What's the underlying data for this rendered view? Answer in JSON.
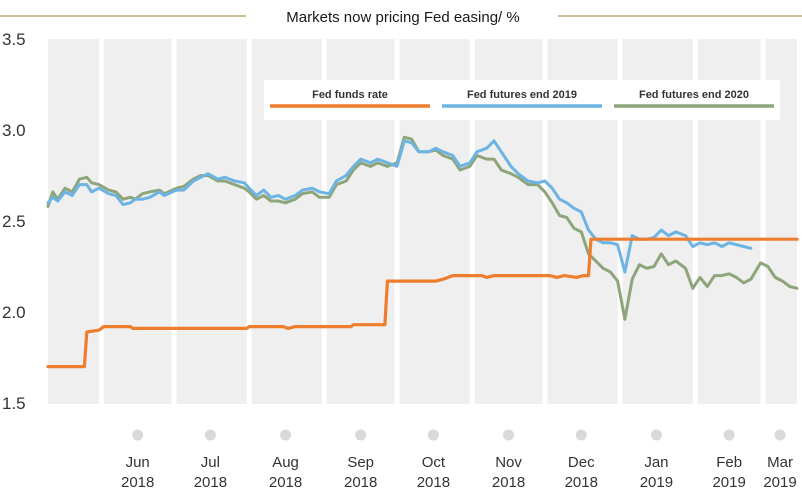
{
  "chart_data": {
    "type": "line",
    "title": "Markets now pricing Fed easing/ %",
    "ylim": [
      1.5,
      3.5
    ],
    "yticks": [
      "3.5",
      "3.0",
      "2.5",
      "2.0",
      "1.5"
    ],
    "xlim": [
      "2018-05-10",
      "2019-03-15"
    ],
    "months": [
      {
        "label": "Jun",
        "year": "2018",
        "start": "2018-06-01",
        "end": "2018-07-01"
      },
      {
        "label": "Jul",
        "year": "2018",
        "start": "2018-07-01",
        "end": "2018-08-01"
      },
      {
        "label": "Aug",
        "year": "2018",
        "start": "2018-08-01",
        "end": "2018-09-01"
      },
      {
        "label": "Sep",
        "year": "2018",
        "start": "2018-09-01",
        "end": "2018-10-01"
      },
      {
        "label": "Oct",
        "year": "2018",
        "start": "2018-10-01",
        "end": "2018-11-01"
      },
      {
        "label": "Nov",
        "year": "2018",
        "start": "2018-11-01",
        "end": "2018-12-01"
      },
      {
        "label": "Dec",
        "year": "2018",
        "start": "2018-12-01",
        "end": "2019-01-01"
      },
      {
        "label": "Jan",
        "year": "2019",
        "start": "2019-01-01",
        "end": "2019-02-01"
      },
      {
        "label": "Feb",
        "year": "2019",
        "start": "2019-02-01",
        "end": "2019-03-01"
      },
      {
        "label": "Mar",
        "year": "2019",
        "start": "2019-03-01",
        "end": "2019-03-15"
      }
    ],
    "legend_position": "top-right",
    "grid": false,
    "series": [
      {
        "name": "Fed funds rate",
        "color": "#ee7d2e",
        "points": [
          [
            "2018-05-10",
            1.7
          ],
          [
            "2018-05-25",
            1.7
          ],
          [
            "2018-05-26",
            1.89
          ],
          [
            "2018-05-31",
            1.9
          ],
          [
            "2018-06-02",
            1.92
          ],
          [
            "2018-06-13",
            1.92
          ],
          [
            "2018-06-14",
            1.91
          ],
          [
            "2018-07-31",
            1.91
          ],
          [
            "2018-08-01",
            1.92
          ],
          [
            "2018-08-15",
            1.92
          ],
          [
            "2018-08-17",
            1.91
          ],
          [
            "2018-08-20",
            1.92
          ],
          [
            "2018-09-12",
            1.92
          ],
          [
            "2018-09-13",
            1.93
          ],
          [
            "2018-09-26",
            1.93
          ],
          [
            "2018-09-27",
            2.17
          ],
          [
            "2018-10-17",
            2.17
          ],
          [
            "2018-10-20",
            2.18
          ],
          [
            "2018-10-24",
            2.2
          ],
          [
            "2018-11-05",
            2.2
          ],
          [
            "2018-11-07",
            2.19
          ],
          [
            "2018-11-10",
            2.2
          ],
          [
            "2018-12-03",
            2.2
          ],
          [
            "2018-12-06",
            2.19
          ],
          [
            "2018-12-09",
            2.2
          ],
          [
            "2018-12-14",
            2.19
          ],
          [
            "2018-12-17",
            2.2
          ],
          [
            "2018-12-19",
            2.2
          ],
          [
            "2018-12-20",
            2.4
          ],
          [
            "2019-03-15",
            2.4
          ]
        ]
      },
      {
        "name": "Fed futures end 2019",
        "color": "#6cb4e4",
        "points": [
          [
            "2018-05-10",
            2.6
          ],
          [
            "2018-05-12",
            2.63
          ],
          [
            "2018-05-14",
            2.61
          ],
          [
            "2018-05-17",
            2.66
          ],
          [
            "2018-05-20",
            2.64
          ],
          [
            "2018-05-23",
            2.7
          ],
          [
            "2018-05-26",
            2.7
          ],
          [
            "2018-05-28",
            2.66
          ],
          [
            "2018-05-31",
            2.68
          ],
          [
            "2018-06-04",
            2.65
          ],
          [
            "2018-06-07",
            2.64
          ],
          [
            "2018-06-10",
            2.59
          ],
          [
            "2018-06-13",
            2.6
          ],
          [
            "2018-06-15",
            2.62
          ],
          [
            "2018-06-18",
            2.62
          ],
          [
            "2018-06-21",
            2.63
          ],
          [
            "2018-06-25",
            2.66
          ],
          [
            "2018-06-27",
            2.64
          ],
          [
            "2018-07-02",
            2.67
          ],
          [
            "2018-07-05",
            2.67
          ],
          [
            "2018-07-09",
            2.72
          ],
          [
            "2018-07-12",
            2.74
          ],
          [
            "2018-07-15",
            2.76
          ],
          [
            "2018-07-19",
            2.73
          ],
          [
            "2018-07-22",
            2.74
          ],
          [
            "2018-07-26",
            2.72
          ],
          [
            "2018-07-30",
            2.71
          ],
          [
            "2018-08-01",
            2.68
          ],
          [
            "2018-08-04",
            2.64
          ],
          [
            "2018-08-07",
            2.67
          ],
          [
            "2018-08-10",
            2.63
          ],
          [
            "2018-08-13",
            2.64
          ],
          [
            "2018-08-16",
            2.62
          ],
          [
            "2018-08-20",
            2.64
          ],
          [
            "2018-08-23",
            2.67
          ],
          [
            "2018-08-27",
            2.68
          ],
          [
            "2018-08-30",
            2.66
          ],
          [
            "2018-09-03",
            2.65
          ],
          [
            "2018-09-06",
            2.72
          ],
          [
            "2018-09-10",
            2.75
          ],
          [
            "2018-09-13",
            2.8
          ],
          [
            "2018-09-16",
            2.84
          ],
          [
            "2018-09-20",
            2.82
          ],
          [
            "2018-09-23",
            2.84
          ],
          [
            "2018-09-27",
            2.82
          ],
          [
            "2018-10-01",
            2.8
          ],
          [
            "2018-10-04",
            2.94
          ],
          [
            "2018-10-07",
            2.93
          ],
          [
            "2018-10-10",
            2.88
          ],
          [
            "2018-10-14",
            2.88
          ],
          [
            "2018-10-17",
            2.9
          ],
          [
            "2018-10-20",
            2.88
          ],
          [
            "2018-10-24",
            2.86
          ],
          [
            "2018-10-27",
            2.8
          ],
          [
            "2018-10-31",
            2.82
          ],
          [
            "2018-11-03",
            2.88
          ],
          [
            "2018-11-07",
            2.9
          ],
          [
            "2018-11-10",
            2.94
          ],
          [
            "2018-11-13",
            2.88
          ],
          [
            "2018-11-17",
            2.8
          ],
          [
            "2018-11-20",
            2.76
          ],
          [
            "2018-11-24",
            2.72
          ],
          [
            "2018-11-28",
            2.71
          ],
          [
            "2018-12-01",
            2.72
          ],
          [
            "2018-12-04",
            2.68
          ],
          [
            "2018-12-07",
            2.62
          ],
          [
            "2018-12-10",
            2.6
          ],
          [
            "2018-12-13",
            2.57
          ],
          [
            "2018-12-16",
            2.55
          ],
          [
            "2018-12-19",
            2.45
          ],
          [
            "2018-12-22",
            2.4
          ],
          [
            "2018-12-25",
            2.38
          ],
          [
            "2018-12-28",
            2.38
          ],
          [
            "2018-12-31",
            2.37
          ],
          [
            "2019-01-03",
            2.22
          ],
          [
            "2019-01-06",
            2.42
          ],
          [
            "2019-01-09",
            2.4
          ],
          [
            "2019-01-12",
            2.4
          ],
          [
            "2019-01-15",
            2.41
          ],
          [
            "2019-01-18",
            2.45
          ],
          [
            "2019-01-21",
            2.42
          ],
          [
            "2019-01-24",
            2.44
          ],
          [
            "2019-01-28",
            2.42
          ],
          [
            "2019-01-31",
            2.36
          ],
          [
            "2019-02-03",
            2.38
          ],
          [
            "2019-02-06",
            2.37
          ],
          [
            "2019-02-09",
            2.38
          ],
          [
            "2019-02-12",
            2.36
          ],
          [
            "2019-02-15",
            2.38
          ],
          [
            "2019-02-18",
            2.37
          ],
          [
            "2019-02-21",
            2.36
          ],
          [
            "2019-02-24",
            2.35
          ]
        ]
      },
      {
        "name": "Fed futures end 2020",
        "color": "#8ea57c",
        "points": [
          [
            "2018-05-10",
            2.58
          ],
          [
            "2018-05-12",
            2.66
          ],
          [
            "2018-05-14",
            2.62
          ],
          [
            "2018-05-17",
            2.68
          ],
          [
            "2018-05-20",
            2.66
          ],
          [
            "2018-05-23",
            2.73
          ],
          [
            "2018-05-26",
            2.74
          ],
          [
            "2018-05-28",
            2.71
          ],
          [
            "2018-05-31",
            2.7
          ],
          [
            "2018-06-04",
            2.67
          ],
          [
            "2018-06-07",
            2.66
          ],
          [
            "2018-06-10",
            2.62
          ],
          [
            "2018-06-13",
            2.63
          ],
          [
            "2018-06-15",
            2.62
          ],
          [
            "2018-06-18",
            2.65
          ],
          [
            "2018-06-21",
            2.66
          ],
          [
            "2018-06-25",
            2.67
          ],
          [
            "2018-06-27",
            2.65
          ],
          [
            "2018-07-02",
            2.68
          ],
          [
            "2018-07-05",
            2.69
          ],
          [
            "2018-07-09",
            2.73
          ],
          [
            "2018-07-12",
            2.75
          ],
          [
            "2018-07-15",
            2.75
          ],
          [
            "2018-07-19",
            2.72
          ],
          [
            "2018-07-22",
            2.72
          ],
          [
            "2018-07-26",
            2.7
          ],
          [
            "2018-07-30",
            2.68
          ],
          [
            "2018-08-01",
            2.66
          ],
          [
            "2018-08-04",
            2.62
          ],
          [
            "2018-08-07",
            2.64
          ],
          [
            "2018-08-10",
            2.61
          ],
          [
            "2018-08-13",
            2.61
          ],
          [
            "2018-08-16",
            2.6
          ],
          [
            "2018-08-20",
            2.62
          ],
          [
            "2018-08-23",
            2.65
          ],
          [
            "2018-08-27",
            2.66
          ],
          [
            "2018-08-30",
            2.63
          ],
          [
            "2018-09-03",
            2.63
          ],
          [
            "2018-09-06",
            2.7
          ],
          [
            "2018-09-10",
            2.72
          ],
          [
            "2018-09-13",
            2.78
          ],
          [
            "2018-09-16",
            2.82
          ],
          [
            "2018-09-20",
            2.8
          ],
          [
            "2018-09-23",
            2.82
          ],
          [
            "2018-09-27",
            2.8
          ],
          [
            "2018-10-01",
            2.82
          ],
          [
            "2018-10-04",
            2.96
          ],
          [
            "2018-10-07",
            2.95
          ],
          [
            "2018-10-10",
            2.88
          ],
          [
            "2018-10-14",
            2.88
          ],
          [
            "2018-10-17",
            2.89
          ],
          [
            "2018-10-20",
            2.86
          ],
          [
            "2018-10-24",
            2.84
          ],
          [
            "2018-10-27",
            2.78
          ],
          [
            "2018-10-31",
            2.8
          ],
          [
            "2018-11-03",
            2.86
          ],
          [
            "2018-11-07",
            2.84
          ],
          [
            "2018-11-10",
            2.84
          ],
          [
            "2018-11-13",
            2.78
          ],
          [
            "2018-11-17",
            2.76
          ],
          [
            "2018-11-20",
            2.74
          ],
          [
            "2018-11-24",
            2.7
          ],
          [
            "2018-11-28",
            2.7
          ],
          [
            "2018-12-01",
            2.66
          ],
          [
            "2018-12-04",
            2.6
          ],
          [
            "2018-12-07",
            2.53
          ],
          [
            "2018-12-10",
            2.52
          ],
          [
            "2018-12-13",
            2.46
          ],
          [
            "2018-12-16",
            2.44
          ],
          [
            "2018-12-19",
            2.32
          ],
          [
            "2018-12-22",
            2.28
          ],
          [
            "2018-12-25",
            2.24
          ],
          [
            "2018-12-28",
            2.22
          ],
          [
            "2018-12-31",
            2.17
          ],
          [
            "2019-01-03",
            1.96
          ],
          [
            "2019-01-06",
            2.18
          ],
          [
            "2019-01-09",
            2.26
          ],
          [
            "2019-01-12",
            2.24
          ],
          [
            "2019-01-15",
            2.25
          ],
          [
            "2019-01-18",
            2.32
          ],
          [
            "2019-01-21",
            2.26
          ],
          [
            "2019-01-24",
            2.28
          ],
          [
            "2019-01-28",
            2.24
          ],
          [
            "2019-01-31",
            2.13
          ],
          [
            "2019-02-03",
            2.19
          ],
          [
            "2019-02-06",
            2.14
          ],
          [
            "2019-02-09",
            2.2
          ],
          [
            "2019-02-12",
            2.2
          ],
          [
            "2019-02-15",
            2.21
          ],
          [
            "2019-02-18",
            2.19
          ],
          [
            "2019-02-21",
            2.16
          ],
          [
            "2019-02-24",
            2.18
          ],
          [
            "2019-02-28",
            2.27
          ],
          [
            "2019-03-03",
            2.25
          ],
          [
            "2019-03-06",
            2.19
          ],
          [
            "2019-03-09",
            2.17
          ],
          [
            "2019-03-12",
            2.14
          ],
          [
            "2019-03-15",
            2.13
          ]
        ]
      }
    ]
  },
  "colors": {
    "band": "#efefef",
    "title_rule": "#c0a977",
    "tick_dot": "#d9d9d9"
  }
}
